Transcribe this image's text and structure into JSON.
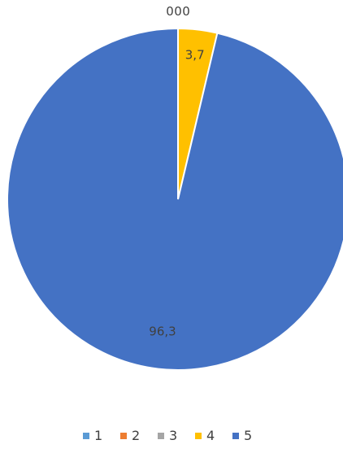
{
  "chart_data": {
    "type": "pie",
    "categories": [
      "1",
      "2",
      "3",
      "4",
      "5"
    ],
    "values": [
      0,
      0,
      0,
      3.7,
      96.3
    ],
    "labels": [
      "0",
      "0",
      "0",
      "3,7",
      "96,3"
    ],
    "colors": [
      "#5B9BD5",
      "#ED7D31",
      "#A5A5A5",
      "#FFC000",
      "#4472C4"
    ],
    "title": "",
    "legend_position": "bottom"
  }
}
